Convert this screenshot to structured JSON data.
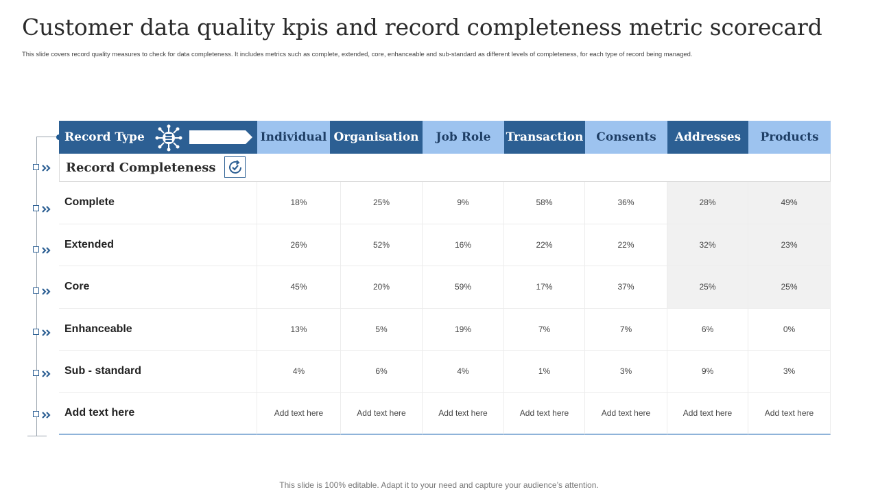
{
  "title": "Customer data quality kpis and record completeness metric scorecard",
  "subtitle": "This slide covers record quality measures to check for data completeness. It includes metrics such as complete,  extended, core, enhanceable and sub-standard as different levels of completeness, for each type of record being managed.",
  "footer": "This slide is 100% editable. Adapt it to your need and capture your audience’s attention.",
  "table": {
    "header_first": "Record Type",
    "columns": [
      "Individual",
      "Organisation",
      "Job Role",
      "Transaction",
      "Consents",
      "Addresses",
      "Products"
    ],
    "section_label": "Record Completeness",
    "rows": [
      {
        "label": "Complete",
        "values": [
          "18%",
          "25%",
          "9%",
          "58%",
          "36%",
          "28%",
          "49%"
        ]
      },
      {
        "label": "Extended",
        "values": [
          "26%",
          "52%",
          "16%",
          "22%",
          "22%",
          "32%",
          "23%"
        ]
      },
      {
        "label": "Core",
        "values": [
          "45%",
          "20%",
          "59%",
          "17%",
          "37%",
          "25%",
          "25%"
        ]
      },
      {
        "label": "Enhanceable",
        "values": [
          "13%",
          "5%",
          "19%",
          "7%",
          "7%",
          "6%",
          "0%"
        ]
      },
      {
        "label": "Sub - standard",
        "values": [
          "4%",
          "6%",
          "4%",
          "1%",
          "3%",
          "9%",
          "3%"
        ]
      },
      {
        "label": "Add text here",
        "values": [
          "Add text here",
          "Add text here",
          "Add text here",
          "Add text here",
          "Add text here",
          "Add text here",
          "Add text here"
        ]
      }
    ]
  },
  "icons": {
    "record_type": "database-network-icon",
    "record_type_arrow": "arrow-tag-icon",
    "completeness": "refresh-check-icon",
    "row_marker": "double-chevron-right-icon"
  },
  "colors": {
    "header_dark": "#2c5f93",
    "header_light": "#9dc3ef",
    "shade": "#f1f1f1"
  }
}
